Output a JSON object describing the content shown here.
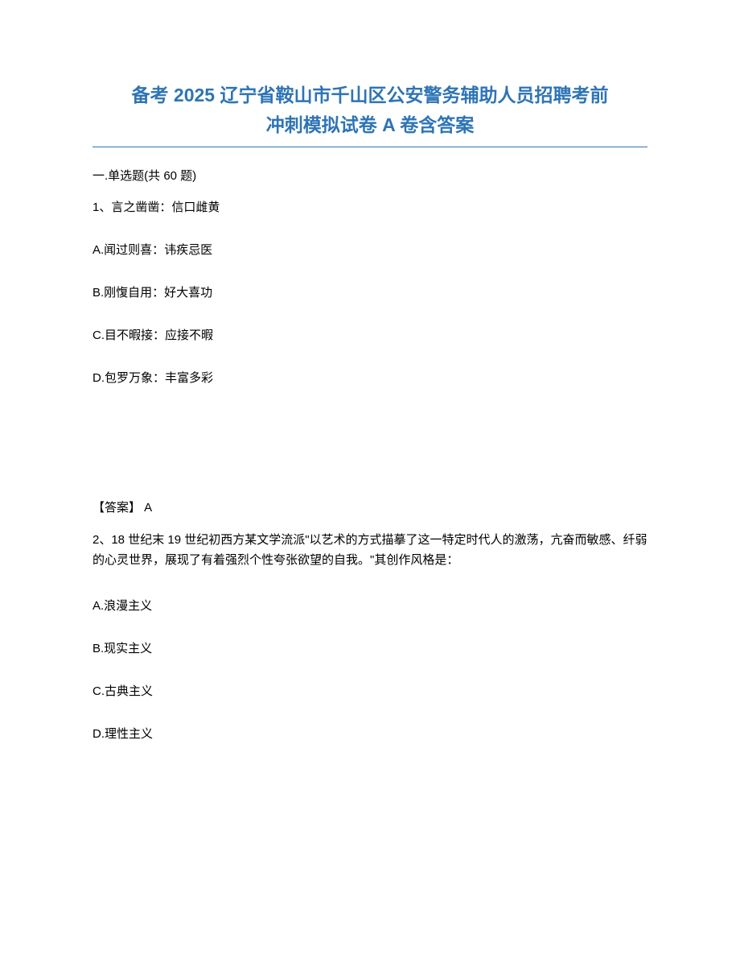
{
  "title": {
    "line1": "备考 2025 辽宁省鞍山市千山区公安警务辅助人员招聘考前",
    "line2": "冲刺模拟试卷 A 卷含答案",
    "color": "#2e74b5",
    "fontsize": 23
  },
  "section": {
    "header": "一.单选题(共 60 题)"
  },
  "question1": {
    "stem": "1、言之凿凿：信口雌黄",
    "options": {
      "A": "A.闻过则喜：讳疾忌医",
      "B": "B.刚愎自用：好大喜功",
      "C": "C.目不暇接：应接不暇",
      "D": "D.包罗万象：丰富多彩"
    },
    "answer_label": "【答案】  A"
  },
  "question2": {
    "stem": "2、18 世纪末 19 世纪初西方某文学流派\"以艺术的方式描摹了这一特定时代人的激荡，亢奋而敏感、纤弱的心灵世界，展现了有着强烈个性夸张欲望的自我。\"其创作风格是：",
    "options": {
      "A": "A.浪漫主义",
      "B": "B.现实主义",
      "C": "C.古典主义",
      "D": "D.理性主义"
    }
  },
  "styling": {
    "body_width": 920,
    "body_height": 1191,
    "background_color": "#ffffff",
    "text_color": "#000000",
    "body_fontsize": 15,
    "padding_top": 100,
    "padding_horizontal": 115
  }
}
